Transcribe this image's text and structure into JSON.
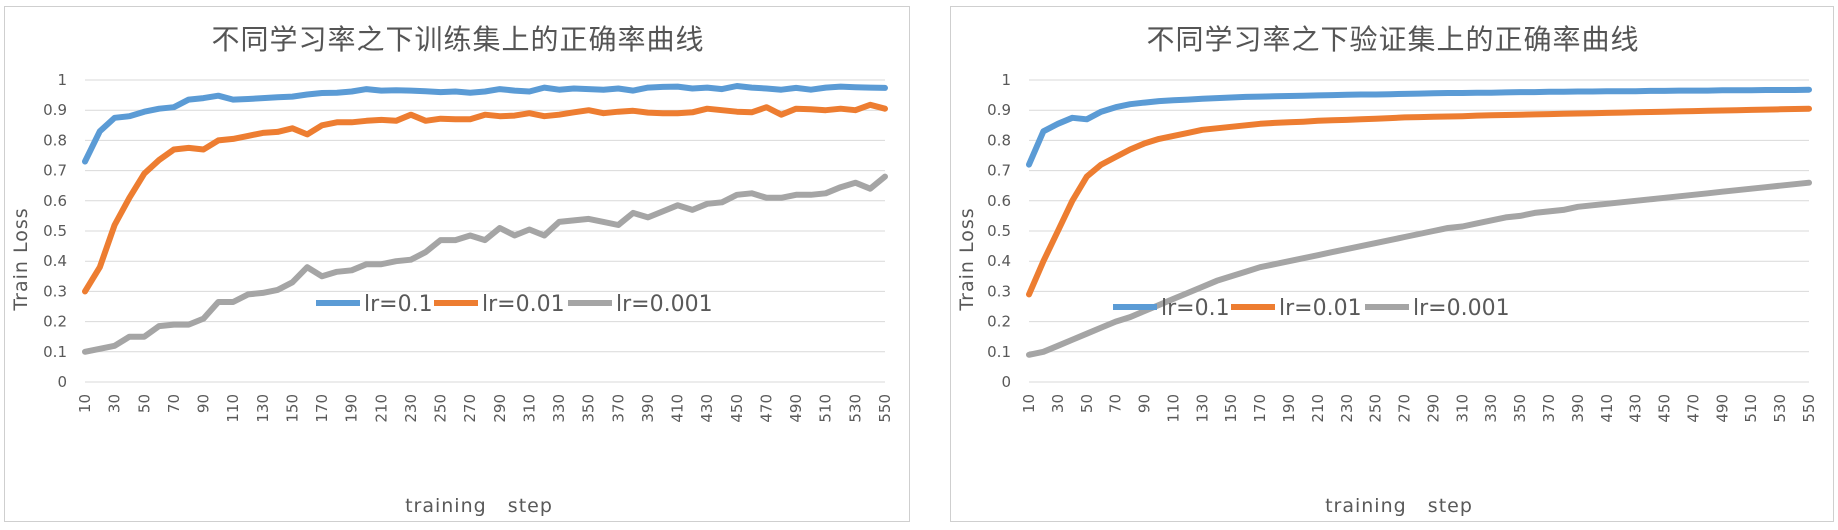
{
  "chart_data": [
    {
      "type": "line",
      "title": "不同学习率之下训练集上的正确率曲线",
      "xlabel": "training   step",
      "ylabel": "Train  Loss",
      "x": [
        10,
        20,
        30,
        40,
        50,
        60,
        70,
        80,
        90,
        100,
        110,
        120,
        130,
        140,
        150,
        160,
        170,
        180,
        190,
        200,
        210,
        220,
        230,
        240,
        250,
        260,
        270,
        280,
        290,
        300,
        310,
        320,
        330,
        340,
        350,
        360,
        370,
        380,
        390,
        400,
        410,
        420,
        430,
        440,
        450,
        460,
        470,
        480,
        490,
        500,
        510,
        520,
        530,
        540,
        550
      ],
      "x_tick_labels": [
        "10",
        "30",
        "50",
        "70",
        "90",
        "110",
        "130",
        "150",
        "170",
        "190",
        "210",
        "230",
        "250",
        "270",
        "290",
        "310",
        "330",
        "350",
        "370",
        "390",
        "410",
        "430",
        "450",
        "470",
        "490",
        "510",
        "530",
        "550"
      ],
      "ylim": [
        0,
        1
      ],
      "y_ticks": [
        0,
        0.1,
        0.2,
        0.3,
        0.4,
        0.5,
        0.6,
        0.7,
        0.8,
        0.9,
        1
      ],
      "y_tick_labels": [
        "0",
        "0.1",
        "0.2",
        "0.3",
        "0.4",
        "0.5",
        "0.6",
        "0.7",
        "0.8",
        "0.9",
        "1"
      ],
      "grid": true,
      "legend_position": "lower-right",
      "series": [
        {
          "name": "lr=0.1",
          "color": "#5b9bd5",
          "values": [
            0.73,
            0.83,
            0.875,
            0.88,
            0.895,
            0.905,
            0.91,
            0.935,
            0.94,
            0.948,
            0.935,
            0.937,
            0.94,
            0.943,
            0.945,
            0.952,
            0.957,
            0.958,
            0.962,
            0.97,
            0.965,
            0.966,
            0.965,
            0.963,
            0.96,
            0.962,
            0.958,
            0.962,
            0.97,
            0.965,
            0.962,
            0.975,
            0.968,
            0.972,
            0.97,
            0.968,
            0.972,
            0.965,
            0.975,
            0.977,
            0.978,
            0.972,
            0.975,
            0.97,
            0.98,
            0.975,
            0.972,
            0.968,
            0.974,
            0.968,
            0.975,
            0.978,
            0.976,
            0.975,
            0.974
          ]
        },
        {
          "name": "lr=0.01",
          "color": "#ed7d31",
          "values": [
            0.3,
            0.38,
            0.52,
            0.61,
            0.69,
            0.735,
            0.77,
            0.775,
            0.77,
            0.8,
            0.805,
            0.815,
            0.825,
            0.828,
            0.84,
            0.82,
            0.85,
            0.86,
            0.86,
            0.865,
            0.868,
            0.865,
            0.885,
            0.865,
            0.872,
            0.87,
            0.87,
            0.885,
            0.88,
            0.882,
            0.89,
            0.88,
            0.885,
            0.893,
            0.9,
            0.89,
            0.895,
            0.898,
            0.892,
            0.89,
            0.89,
            0.893,
            0.905,
            0.9,
            0.895,
            0.893,
            0.91,
            0.885,
            0.905,
            0.903,
            0.9,
            0.905,
            0.9,
            0.918,
            0.905
          ]
        },
        {
          "name": "lr=0.001",
          "color": "#a5a5a5",
          "values": [
            0.1,
            0.11,
            0.12,
            0.15,
            0.15,
            0.185,
            0.19,
            0.19,
            0.21,
            0.265,
            0.265,
            0.29,
            0.295,
            0.305,
            0.33,
            0.38,
            0.35,
            0.365,
            0.37,
            0.39,
            0.39,
            0.4,
            0.405,
            0.43,
            0.47,
            0.47,
            0.485,
            0.47,
            0.51,
            0.485,
            0.505,
            0.485,
            0.53,
            0.535,
            0.54,
            0.53,
            0.52,
            0.56,
            0.545,
            0.565,
            0.585,
            0.57,
            0.59,
            0.595,
            0.62,
            0.625,
            0.61,
            0.61,
            0.62,
            0.62,
            0.625,
            0.645,
            0.66,
            0.64,
            0.68
          ]
        }
      ]
    },
    {
      "type": "line",
      "title": "不同学习率之下验证集上的正确率曲线",
      "xlabel": "training   step",
      "ylabel": "Train  Loss",
      "x": [
        10,
        20,
        30,
        40,
        50,
        60,
        70,
        80,
        90,
        100,
        110,
        120,
        130,
        140,
        150,
        160,
        170,
        180,
        190,
        200,
        210,
        220,
        230,
        240,
        250,
        260,
        270,
        280,
        290,
        300,
        310,
        320,
        330,
        340,
        350,
        360,
        370,
        380,
        390,
        400,
        410,
        420,
        430,
        440,
        450,
        460,
        470,
        480,
        490,
        500,
        510,
        520,
        530,
        540,
        550
      ],
      "x_tick_labels": [
        "10",
        "30",
        "50",
        "70",
        "90",
        "110",
        "130",
        "150",
        "170",
        "190",
        "210",
        "230",
        "250",
        "270",
        "290",
        "310",
        "330",
        "350",
        "370",
        "390",
        "410",
        "430",
        "450",
        "470",
        "490",
        "510",
        "530",
        "550"
      ],
      "ylim": [
        0,
        1
      ],
      "y_ticks": [
        0,
        0.1,
        0.2,
        0.3,
        0.4,
        0.5,
        0.6,
        0.7,
        0.8,
        0.9,
        1
      ],
      "y_tick_labels": [
        "0",
        "0.1",
        "0.2",
        "0.3",
        "0.4",
        "0.5",
        "0.6",
        "0.7",
        "0.8",
        "0.9",
        "1"
      ],
      "grid": true,
      "legend_position": "lower-right",
      "series": [
        {
          "name": "lr=0.1",
          "color": "#5b9bd5",
          "values": [
            0.72,
            0.83,
            0.855,
            0.875,
            0.87,
            0.895,
            0.91,
            0.92,
            0.925,
            0.93,
            0.933,
            0.935,
            0.938,
            0.94,
            0.942,
            0.944,
            0.945,
            0.946,
            0.947,
            0.948,
            0.949,
            0.95,
            0.951,
            0.952,
            0.952,
            0.953,
            0.954,
            0.955,
            0.956,
            0.957,
            0.957,
            0.958,
            0.958,
            0.959,
            0.96,
            0.96,
            0.961,
            0.961,
            0.962,
            0.962,
            0.963,
            0.963,
            0.963,
            0.964,
            0.964,
            0.965,
            0.965,
            0.965,
            0.966,
            0.966,
            0.966,
            0.967,
            0.967,
            0.967,
            0.968
          ]
        },
        {
          "name": "lr=0.01",
          "color": "#ed7d31",
          "values": [
            0.29,
            0.4,
            0.5,
            0.6,
            0.68,
            0.72,
            0.745,
            0.77,
            0.79,
            0.805,
            0.815,
            0.825,
            0.835,
            0.84,
            0.845,
            0.85,
            0.855,
            0.858,
            0.86,
            0.862,
            0.865,
            0.867,
            0.868,
            0.87,
            0.872,
            0.874,
            0.876,
            0.877,
            0.878,
            0.879,
            0.88,
            0.882,
            0.883,
            0.884,
            0.885,
            0.886,
            0.887,
            0.888,
            0.889,
            0.89,
            0.891,
            0.892,
            0.893,
            0.894,
            0.895,
            0.896,
            0.897,
            0.898,
            0.899,
            0.9,
            0.901,
            0.902,
            0.903,
            0.904,
            0.905
          ]
        },
        {
          "name": "lr=0.001",
          "color": "#a5a5a5",
          "values": [
            0.09,
            0.1,
            0.12,
            0.14,
            0.16,
            0.18,
            0.2,
            0.215,
            0.235,
            0.255,
            0.275,
            0.295,
            0.315,
            0.335,
            0.35,
            0.365,
            0.38,
            0.39,
            0.4,
            0.41,
            0.42,
            0.43,
            0.44,
            0.45,
            0.46,
            0.47,
            0.48,
            0.49,
            0.5,
            0.51,
            0.515,
            0.525,
            0.535,
            0.545,
            0.55,
            0.56,
            0.565,
            0.57,
            0.58,
            0.585,
            0.59,
            0.595,
            0.6,
            0.605,
            0.61,
            0.615,
            0.62,
            0.625,
            0.63,
            0.635,
            0.64,
            0.645,
            0.65,
            0.655,
            0.66
          ]
        }
      ]
    }
  ]
}
